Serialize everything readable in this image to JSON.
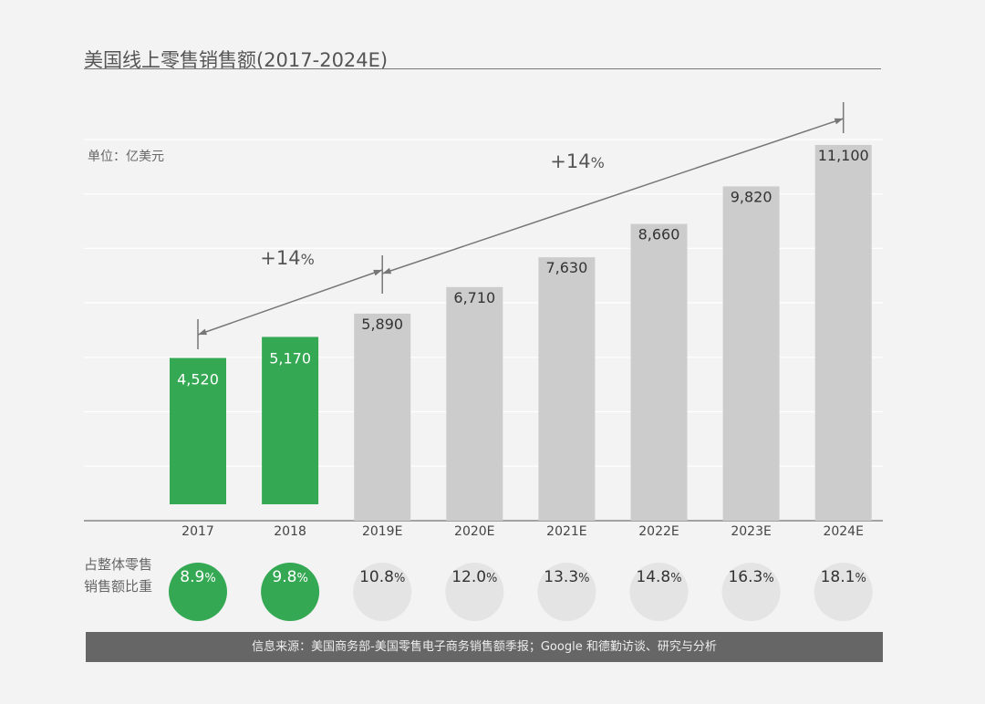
{
  "title": "美国线上零售销售额(2017-2024E)",
  "unit_label": "单位：亿美元",
  "share_row_label_line1": "占整体零售",
  "share_row_label_line2": "销售额比重",
  "source": "信息来源：美国商务部-美国零售电子商务销售额季报；Google 和德勤访谈、研究与分析",
  "colors": {
    "actual": "#34a853",
    "estimate": "#cccccc",
    "circle_estimate": "#e4e4e4"
  },
  "chart_data": {
    "type": "bar",
    "categories": [
      "2017",
      "2018",
      "2019E",
      "2020E",
      "2021E",
      "2022E",
      "2023E",
      "2024E"
    ],
    "values": [
      4520,
      5170,
      5890,
      6710,
      7630,
      8660,
      9820,
      11100
    ],
    "value_labels": [
      "4,520",
      "5,170",
      "5,890",
      "6,710",
      "7,630",
      "8,660",
      "9,820",
      "11,100"
    ],
    "actual": [
      true,
      true,
      false,
      false,
      false,
      false,
      false,
      false
    ],
    "share_pct": [
      "8.9",
      "9.8",
      "10.8",
      "12.0",
      "13.3",
      "14.8",
      "16.3",
      "18.1"
    ],
    "pct_sign": "%",
    "annotations": [
      {
        "from": "2017",
        "to": "2019E",
        "text": "+14",
        "unit": "%"
      },
      {
        "from": "2019E",
        "to": "2024E",
        "text": "+14",
        "unit": "%"
      }
    ],
    "grid": true
  }
}
